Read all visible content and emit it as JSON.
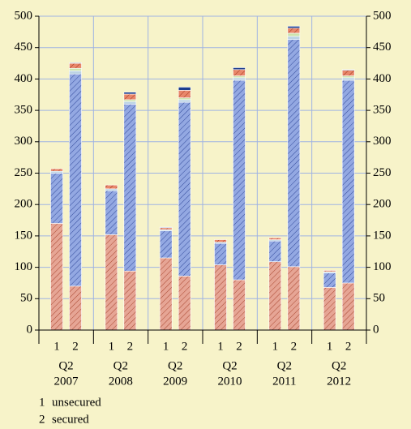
{
  "chart_data": {
    "type": "stacked_bar",
    "categories": [
      "1",
      "2",
      "1",
      "2",
      "1",
      "2",
      "1",
      "2",
      "1",
      "2",
      "1",
      "2"
    ],
    "groups": [
      [
        "Q2",
        "2007"
      ],
      [
        "Q2",
        "2008"
      ],
      [
        "Q2",
        "2009"
      ],
      [
        "Q2",
        "2010"
      ],
      [
        "Q2",
        "2011"
      ],
      [
        "Q2",
        "2012"
      ]
    ],
    "series": [
      {
        "color": "#e6a595",
        "hatch": "#a8452e",
        "values": [
          170,
          70,
          152,
          94,
          115,
          86,
          104,
          80,
          109,
          101,
          68,
          75
        ]
      },
      {
        "color": "#93a8e2",
        "hatch": "#30489a",
        "values": [
          80,
          338,
          70,
          266,
          43,
          277,
          34,
          318,
          33,
          362,
          23,
          323
        ]
      },
      {
        "color": "#bcd3e4",
        "values": [
          3,
          5,
          3,
          4,
          2,
          4,
          2,
          4,
          2,
          5,
          2,
          4
        ]
      },
      {
        "color": "#cde3ad",
        "values": [
          0,
          4,
          0,
          3,
          0,
          3,
          0,
          3,
          0,
          5,
          0,
          3
        ]
      },
      {
        "color": "#e8876a",
        "hatch": "#a0301c",
        "values": [
          4,
          8,
          6,
          9,
          3,
          12,
          4,
          10,
          3,
          8,
          2,
          9
        ]
      },
      {
        "color": "#1c3d8e",
        "values": [
          0,
          1,
          0,
          3,
          1,
          5,
          0,
          3,
          0,
          3,
          0,
          1
        ]
      }
    ],
    "ylim": [
      0,
      500
    ],
    "yticks": [
      0,
      50,
      100,
      150,
      200,
      250,
      300,
      350,
      400,
      450,
      500
    ],
    "y2lim": [
      0,
      500
    ],
    "y2ticks": [
      0,
      50,
      100,
      150,
      200,
      250,
      300,
      350,
      400,
      450,
      500
    ],
    "grid": true,
    "notes": [
      {
        "key": "1",
        "label": "unsecured"
      },
      {
        "key": "2",
        "label": "secured"
      }
    ]
  }
}
